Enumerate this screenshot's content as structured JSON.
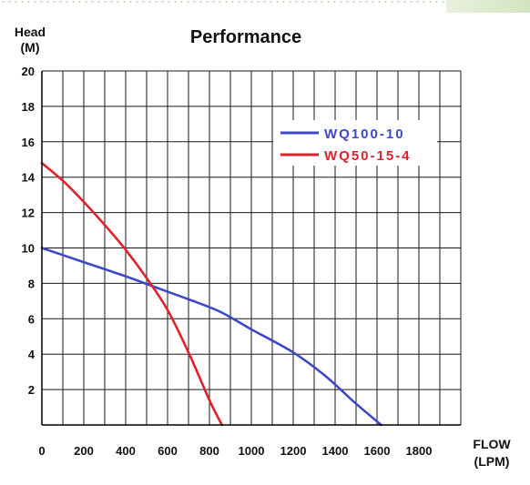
{
  "chart_data": {
    "type": "line",
    "title": "Performance",
    "ylabel": [
      "Head",
      "(M)"
    ],
    "xlabel": [
      "FLOW",
      "(LPM)"
    ],
    "xlim": [
      0,
      2000
    ],
    "ylim": [
      0,
      20
    ],
    "x_ticks": [
      "0",
      "200",
      "400",
      "600",
      "800",
      "1000",
      "1200",
      "1400",
      "1600",
      "1800"
    ],
    "x_tick_values": [
      0,
      200,
      400,
      600,
      800,
      1000,
      1200,
      1400,
      1600,
      1800
    ],
    "y_ticks": [
      "2",
      "4",
      "6",
      "8",
      "10",
      "12",
      "14",
      "16",
      "18",
      "20"
    ],
    "y_tick_values": [
      2,
      4,
      6,
      8,
      10,
      12,
      14,
      16,
      18,
      20
    ],
    "grid": true,
    "legend_position": "top-right",
    "series": [
      {
        "name": "WQ100-10",
        "color": "#3e48c8",
        "x": [
          0,
          200,
          400,
          560,
          700,
          850,
          1000,
          1200,
          1350,
          1500,
          1620
        ],
        "y": [
          10.0,
          9.2,
          8.4,
          7.7,
          7.1,
          6.4,
          5.4,
          4.1,
          2.8,
          1.2,
          0
        ]
      },
      {
        "name": "WQ50-15-4",
        "color": "#e2222a",
        "x": [
          0,
          100,
          200,
          300,
          400,
          500,
          600,
          700,
          800,
          860
        ],
        "y": [
          14.8,
          13.8,
          12.6,
          11.3,
          9.9,
          8.3,
          6.5,
          4.1,
          1.4,
          0
        ]
      }
    ]
  }
}
